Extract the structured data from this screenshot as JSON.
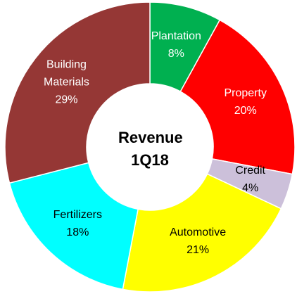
{
  "chart_data": {
    "type": "donut",
    "title": "Revenue 1Q18",
    "categories": [
      "Plantation",
      "Property",
      "Credit",
      "Automotive",
      "Fertilizers",
      "Building Materials"
    ],
    "values": [
      8,
      20,
      4,
      21,
      18,
      29
    ],
    "value_labels": [
      "8%",
      "20%",
      "4%",
      "21%",
      "18%",
      "29%"
    ],
    "colors": [
      "#00b050",
      "#ff0000",
      "#ccc0da",
      "#ffff00",
      "#00ffff",
      "#953735"
    ]
  }
}
